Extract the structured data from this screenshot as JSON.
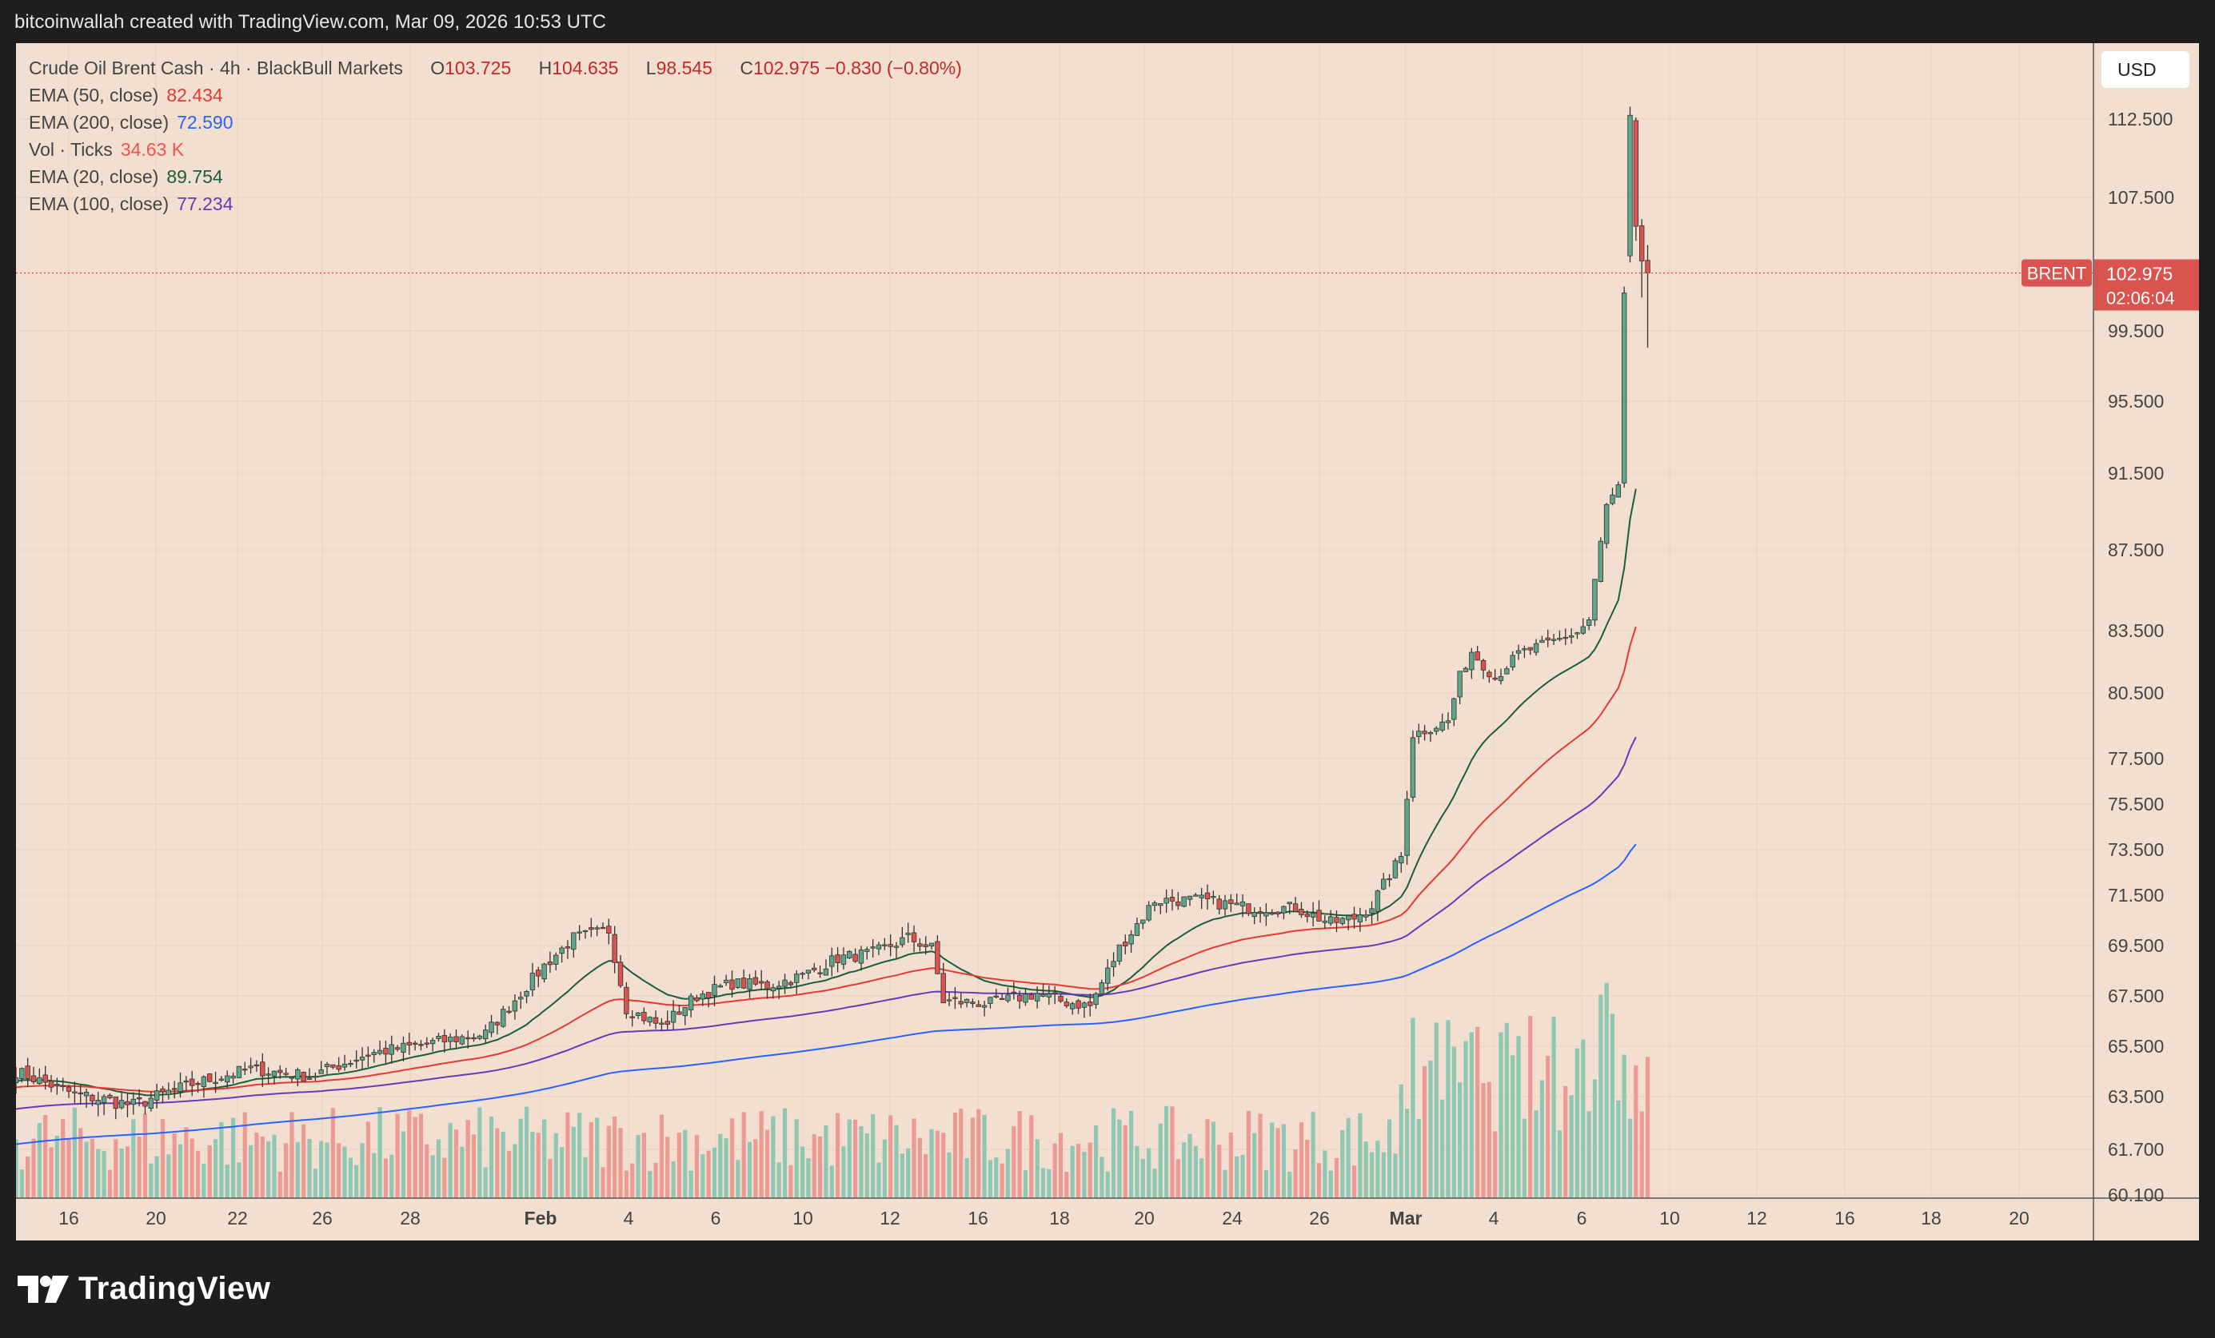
{
  "header": {
    "caption": "bitcoinwallah created with TradingView.com, Mar 09, 2026 10:53 UTC"
  },
  "legend": {
    "symbol": "Crude Oil Brent Cash · 4h · BlackBull Markets",
    "open_label": "O",
    "open": "103.725",
    "high_label": "H",
    "high": "104.635",
    "low_label": "L",
    "low": "98.545",
    "close_label": "C",
    "close": "102.975",
    "change": "−0.830 (−0.80%)",
    "indicators": [
      {
        "label": "EMA (50, close)",
        "value": "82.434",
        "color": "#e53935"
      },
      {
        "label": "EMA (200, close)",
        "value": "72.590",
        "color": "#2962ff"
      },
      {
        "label": "Vol · Ticks",
        "value": "34.63 K",
        "color": "#ef5350"
      },
      {
        "label": "EMA (20, close)",
        "value": "89.754",
        "color": "#1b5e3a"
      },
      {
        "label": "EMA (100, close)",
        "value": "77.234",
        "color": "#673ab7"
      }
    ]
  },
  "currency_button": "USD",
  "price_tag": {
    "symbol": "BRENT",
    "price": "102.975",
    "countdown": "02:06:04"
  },
  "branding": {
    "name": "TradingView",
    "icon": "tradingview-logo-icon"
  },
  "colors": {
    "up": "#5fa58c",
    "down": "#d9534f",
    "vol_up": "#8fc7b4",
    "vol_down": "#eb9a94",
    "background": "#f2dfd0"
  },
  "chart_data": {
    "type": "candlestick",
    "interval": "4h",
    "y_axis_ticks": [
      "112.500",
      "107.500",
      "99.500",
      "95.500",
      "91.500",
      "87.500",
      "83.500",
      "80.500",
      "77.500",
      "75.500",
      "73.500",
      "71.500",
      "69.500",
      "67.500",
      "65.500",
      "63.500",
      "61.700",
      "60.100"
    ],
    "x_axis_ticks": [
      {
        "label": "16",
        "bold": false
      },
      {
        "label": "20",
        "bold": false
      },
      {
        "label": "22",
        "bold": false
      },
      {
        "label": "26",
        "bold": false
      },
      {
        "label": "28",
        "bold": false
      },
      {
        "label": "Feb",
        "bold": true
      },
      {
        "label": "4",
        "bold": false
      },
      {
        "label": "6",
        "bold": false
      },
      {
        "label": "10",
        "bold": false
      },
      {
        "label": "12",
        "bold": false
      },
      {
        "label": "16",
        "bold": false
      },
      {
        "label": "18",
        "bold": false
      },
      {
        "label": "20",
        "bold": false
      },
      {
        "label": "24",
        "bold": false
      },
      {
        "label": "26",
        "bold": false
      },
      {
        "label": "Mar",
        "bold": true
      },
      {
        "label": "4",
        "bold": false
      },
      {
        "label": "6",
        "bold": false
      },
      {
        "label": "10",
        "bold": false
      },
      {
        "label": "12",
        "bold": false
      },
      {
        "label": "16",
        "bold": false
      },
      {
        "label": "18",
        "bold": false
      },
      {
        "label": "20",
        "bold": false
      }
    ],
    "grid": true,
    "current_price": 102.975,
    "anchor_closes": [
      [
        0,
        64.5
      ],
      [
        10,
        63.6
      ],
      [
        20,
        63.2
      ],
      [
        30,
        64.0
      ],
      [
        40,
        64.6
      ],
      [
        50,
        64.3
      ],
      [
        60,
        65.2
      ],
      [
        70,
        65.6
      ],
      [
        80,
        66.0
      ],
      [
        90,
        68.7
      ],
      [
        95,
        69.8
      ],
      [
        101,
        70.1
      ],
      [
        104,
        67.0
      ],
      [
        110,
        66.3
      ],
      [
        116,
        67.5
      ],
      [
        122,
        68.0
      ],
      [
        128,
        67.9
      ],
      [
        134,
        68.3
      ],
      [
        140,
        69.0
      ],
      [
        146,
        69.2
      ],
      [
        152,
        69.8
      ],
      [
        156,
        69.4
      ],
      [
        158,
        67.3
      ],
      [
        166,
        67.2
      ],
      [
        174,
        67.6
      ],
      [
        178,
        67.3
      ],
      [
        183,
        67.1
      ],
      [
        188,
        69.4
      ],
      [
        194,
        71.3
      ],
      [
        202,
        71.3
      ],
      [
        210,
        71.0
      ],
      [
        218,
        71.0
      ],
      [
        224,
        70.4
      ],
      [
        228,
        70.6
      ],
      [
        231,
        71.1
      ],
      [
        234,
        72.4
      ],
      [
        236,
        73.2
      ],
      [
        238,
        78.6
      ],
      [
        244,
        79.2
      ],
      [
        246,
        81.3
      ],
      [
        248,
        82.5
      ],
      [
        252,
        81.2
      ],
      [
        256,
        82.4
      ],
      [
        262,
        83.0
      ],
      [
        266,
        83.4
      ],
      [
        268,
        84.0
      ],
      [
        271,
        89.8
      ],
      [
        273,
        90.7
      ],
      [
        275,
        112.5
      ],
      [
        276,
        105.8
      ],
      [
        277,
        103.7
      ],
      [
        278,
        102.975
      ]
    ],
    "volume_range": [
      0,
      34.63
    ],
    "emas": [
      {
        "name": "EMA (20, close)",
        "period": 20,
        "value": "89.754",
        "color": "#1b5e3a"
      },
      {
        "name": "EMA (50, close)",
        "period": 50,
        "value": "82.434",
        "color": "#e53935"
      },
      {
        "name": "EMA (100, close)",
        "period": 100,
        "value": "77.234",
        "color": "#673ab7"
      },
      {
        "name": "EMA (200, close)",
        "period": 200,
        "value": "72.590",
        "color": "#2962ff"
      }
    ]
  }
}
